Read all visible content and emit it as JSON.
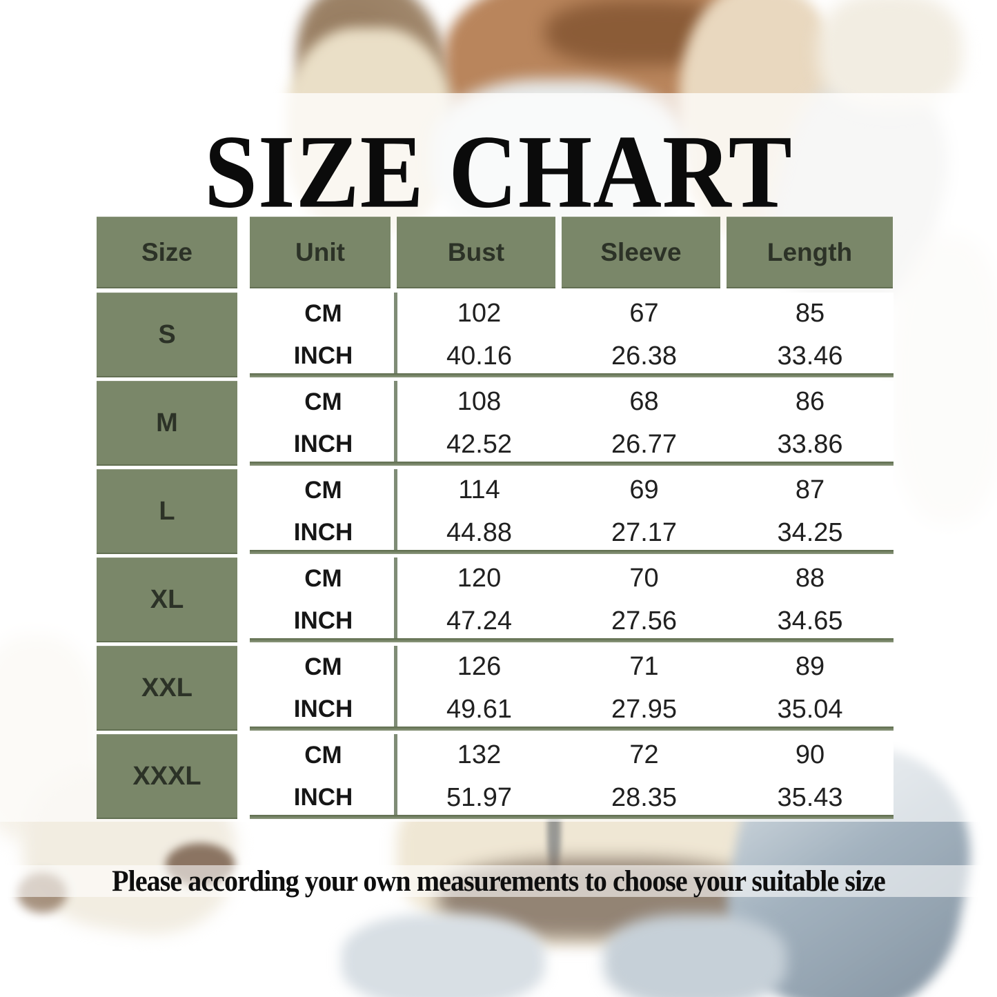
{
  "chart_data": {
    "type": "table",
    "title": "SIZE CHART",
    "columns": [
      "Size",
      "Unit",
      "Bust",
      "Sleeve",
      "Length"
    ],
    "rows": [
      [
        "S",
        "CM",
        102,
        67,
        85
      ],
      [
        "S",
        "INCH",
        40.16,
        26.38,
        33.46
      ],
      [
        "M",
        "CM",
        108,
        68,
        86
      ],
      [
        "M",
        "INCH",
        42.52,
        26.77,
        33.86
      ],
      [
        "L",
        "CM",
        114,
        69,
        87
      ],
      [
        "L",
        "INCH",
        44.88,
        27.17,
        34.25
      ],
      [
        "XL",
        "CM",
        120,
        70,
        88
      ],
      [
        "XL",
        "INCH",
        47.24,
        27.56,
        34.65
      ],
      [
        "XXL",
        "CM",
        126,
        71,
        89
      ],
      [
        "XXL",
        "INCH",
        49.61,
        27.95,
        35.04
      ],
      [
        "XXXL",
        "CM",
        132,
        72,
        90
      ],
      [
        "XXXL",
        "INCH",
        51.97,
        28.35,
        35.43
      ]
    ],
    "note": "Please according your own measurements to choose your suitable size",
    "layout_hints": {
      "grid": "off",
      "header_position": "top",
      "units_per_size": [
        "CM",
        "INCH"
      ]
    }
  },
  "colors": {
    "cell_green": "#7a8769",
    "separator_green_dark": "#5c6a4b",
    "separator_green_light": "#8d997e",
    "table_text": "#202020",
    "title_text": "#0b0b0b"
  }
}
